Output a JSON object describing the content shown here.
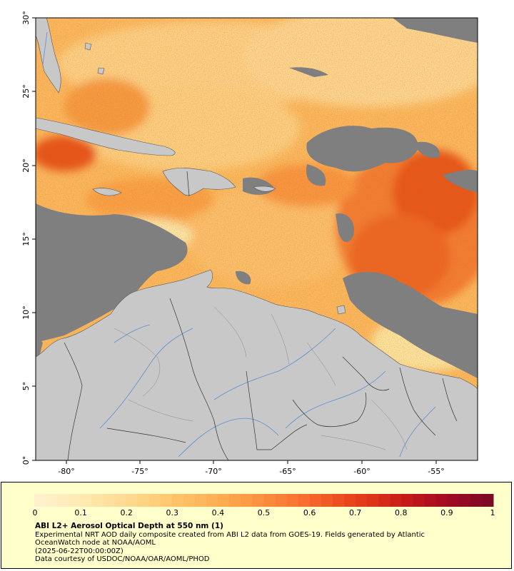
{
  "map": {
    "lon_ticks": [
      "-80°",
      "-75°",
      "-70°",
      "-65°",
      "-60°",
      "-55°"
    ],
    "lat_ticks": [
      "30°",
      "25°",
      "20°",
      "15°",
      "10°",
      "5°",
      "0°"
    ],
    "colors": {
      "land": "#c8c8c8",
      "no_data": "#7f7f7f",
      "borders": "#3a3a3a",
      "rivers": "#5b8fd0"
    }
  },
  "legend": {
    "colorbar_ticks": [
      "0",
      "0.1",
      "0.2",
      "0.3",
      "0.4",
      "0.5",
      "0.6",
      "0.7",
      "0.8",
      "0.9",
      "1"
    ],
    "colorbar_range": [
      0,
      1
    ],
    "colormap": [
      "#fff2cc",
      "#ffe9b0",
      "#fed98e",
      "#fec56a",
      "#fdad52",
      "#fb8e3e",
      "#f66a2c",
      "#e8421c",
      "#cc1f16",
      "#a50a22",
      "#7d0a25"
    ],
    "title": "ABI L2+ Aerosol Optical Depth at 550 nm (1)",
    "line1": "Experimental NRT AOD daily composite created from ABI L2 data from GOES-19. Fields generated by Atlantic",
    "line2": "OceanWatch node at NOAA/AOML",
    "line3": "(2025-06-22T00:00:00Z)",
    "line4": "Data courtesy of USDOC/NOAA/OAR/AOML/PHOD"
  }
}
